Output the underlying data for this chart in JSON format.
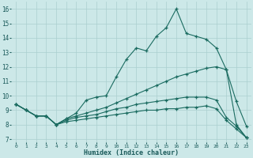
{
  "xlabel": "Humidex (Indice chaleur)",
  "bg_color": "#cce8e8",
  "line_color": "#1a6b60",
  "grid_color": "#aacfcf",
  "xlim": [
    -0.5,
    23.5
  ],
  "ylim": [
    6.8,
    16.5
  ],
  "xticks": [
    0,
    1,
    2,
    3,
    4,
    5,
    6,
    7,
    8,
    9,
    10,
    11,
    12,
    13,
    14,
    15,
    16,
    17,
    18,
    19,
    20,
    21,
    22,
    23
  ],
  "yticks": [
    7,
    8,
    9,
    10,
    11,
    12,
    13,
    14,
    15,
    16
  ],
  "line1_y": [
    9.4,
    9.0,
    8.6,
    8.6,
    8.0,
    8.4,
    8.8,
    9.7,
    9.9,
    10.0,
    11.3,
    12.5,
    13.3,
    13.1,
    14.1,
    14.7,
    16.0,
    14.3,
    14.1,
    13.9,
    13.3,
    11.8,
    9.6,
    7.9
  ],
  "line2_y": [
    9.4,
    9.0,
    8.6,
    8.6,
    8.0,
    8.4,
    8.6,
    8.8,
    9.0,
    9.2,
    9.5,
    9.8,
    10.1,
    10.4,
    10.7,
    11.0,
    11.3,
    11.5,
    11.7,
    11.9,
    12.0,
    11.8,
    8.0,
    7.1
  ],
  "line3_y": [
    9.4,
    9.0,
    8.6,
    8.6,
    8.0,
    8.3,
    8.5,
    8.6,
    8.7,
    8.9,
    9.1,
    9.2,
    9.4,
    9.5,
    9.6,
    9.7,
    9.8,
    9.9,
    9.9,
    9.9,
    9.7,
    8.5,
    7.9,
    7.1
  ],
  "line4_y": [
    9.4,
    9.0,
    8.6,
    8.6,
    8.0,
    8.2,
    8.3,
    8.4,
    8.5,
    8.6,
    8.7,
    8.8,
    8.9,
    9.0,
    9.0,
    9.1,
    9.1,
    9.2,
    9.2,
    9.3,
    9.1,
    8.3,
    7.7,
    7.1
  ]
}
